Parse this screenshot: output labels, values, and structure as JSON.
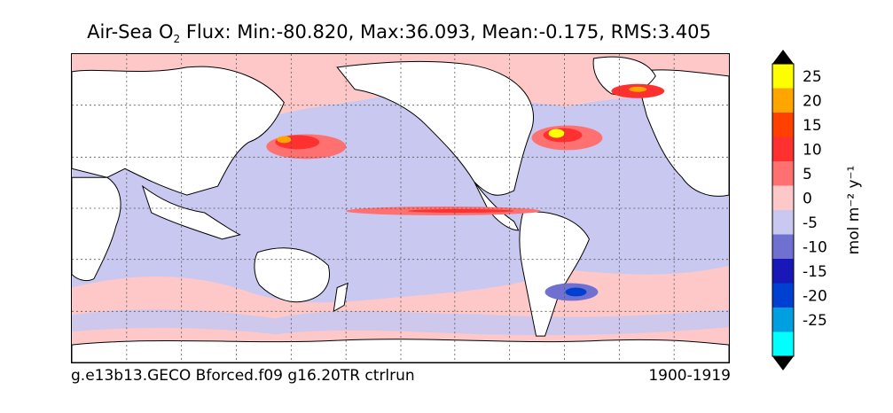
{
  "title": {
    "prefix": "Air-Sea O",
    "subscript": "2",
    "suffix": " Flux: Min:-80.820, Max:36.093, Mean:-0.175, RMS:3.405"
  },
  "caption": {
    "left": "g.e13b13.GECO Bforced.f09 g16.20TR ctrlrun",
    "right": "1900-1919"
  },
  "colorbar": {
    "unit_label": "mol m⁻² y⁻¹",
    "levels": [
      {
        "label": "25",
        "color": "#ffff00"
      },
      {
        "label": "20",
        "color": "#ffa500"
      },
      {
        "label": "15",
        "color": "#ff4000"
      },
      {
        "label": "10",
        "color": "#ff3030"
      },
      {
        "label": "5",
        "color": "#ff7070"
      },
      {
        "label": "0",
        "color": "#ffc8c8"
      },
      {
        "label": "-5",
        "color": "#c8c8f0"
      },
      {
        "label": "-10",
        "color": "#7070d0"
      },
      {
        "label": "-15",
        "color": "#1818b8"
      },
      {
        "label": "-20",
        "color": "#0040d0"
      },
      {
        "label": "-25",
        "color": "#00a0e0"
      },
      {
        "label": "",
        "color": "#00ffff"
      }
    ],
    "over_color": "#000000",
    "under_color": "#000000"
  },
  "map": {
    "ocean_positive_color": "#ffc8c8",
    "ocean_negative_color": "#c8c8f0",
    "land_color": "#ffffff",
    "coast_color": "#000000",
    "grid": true
  }
}
